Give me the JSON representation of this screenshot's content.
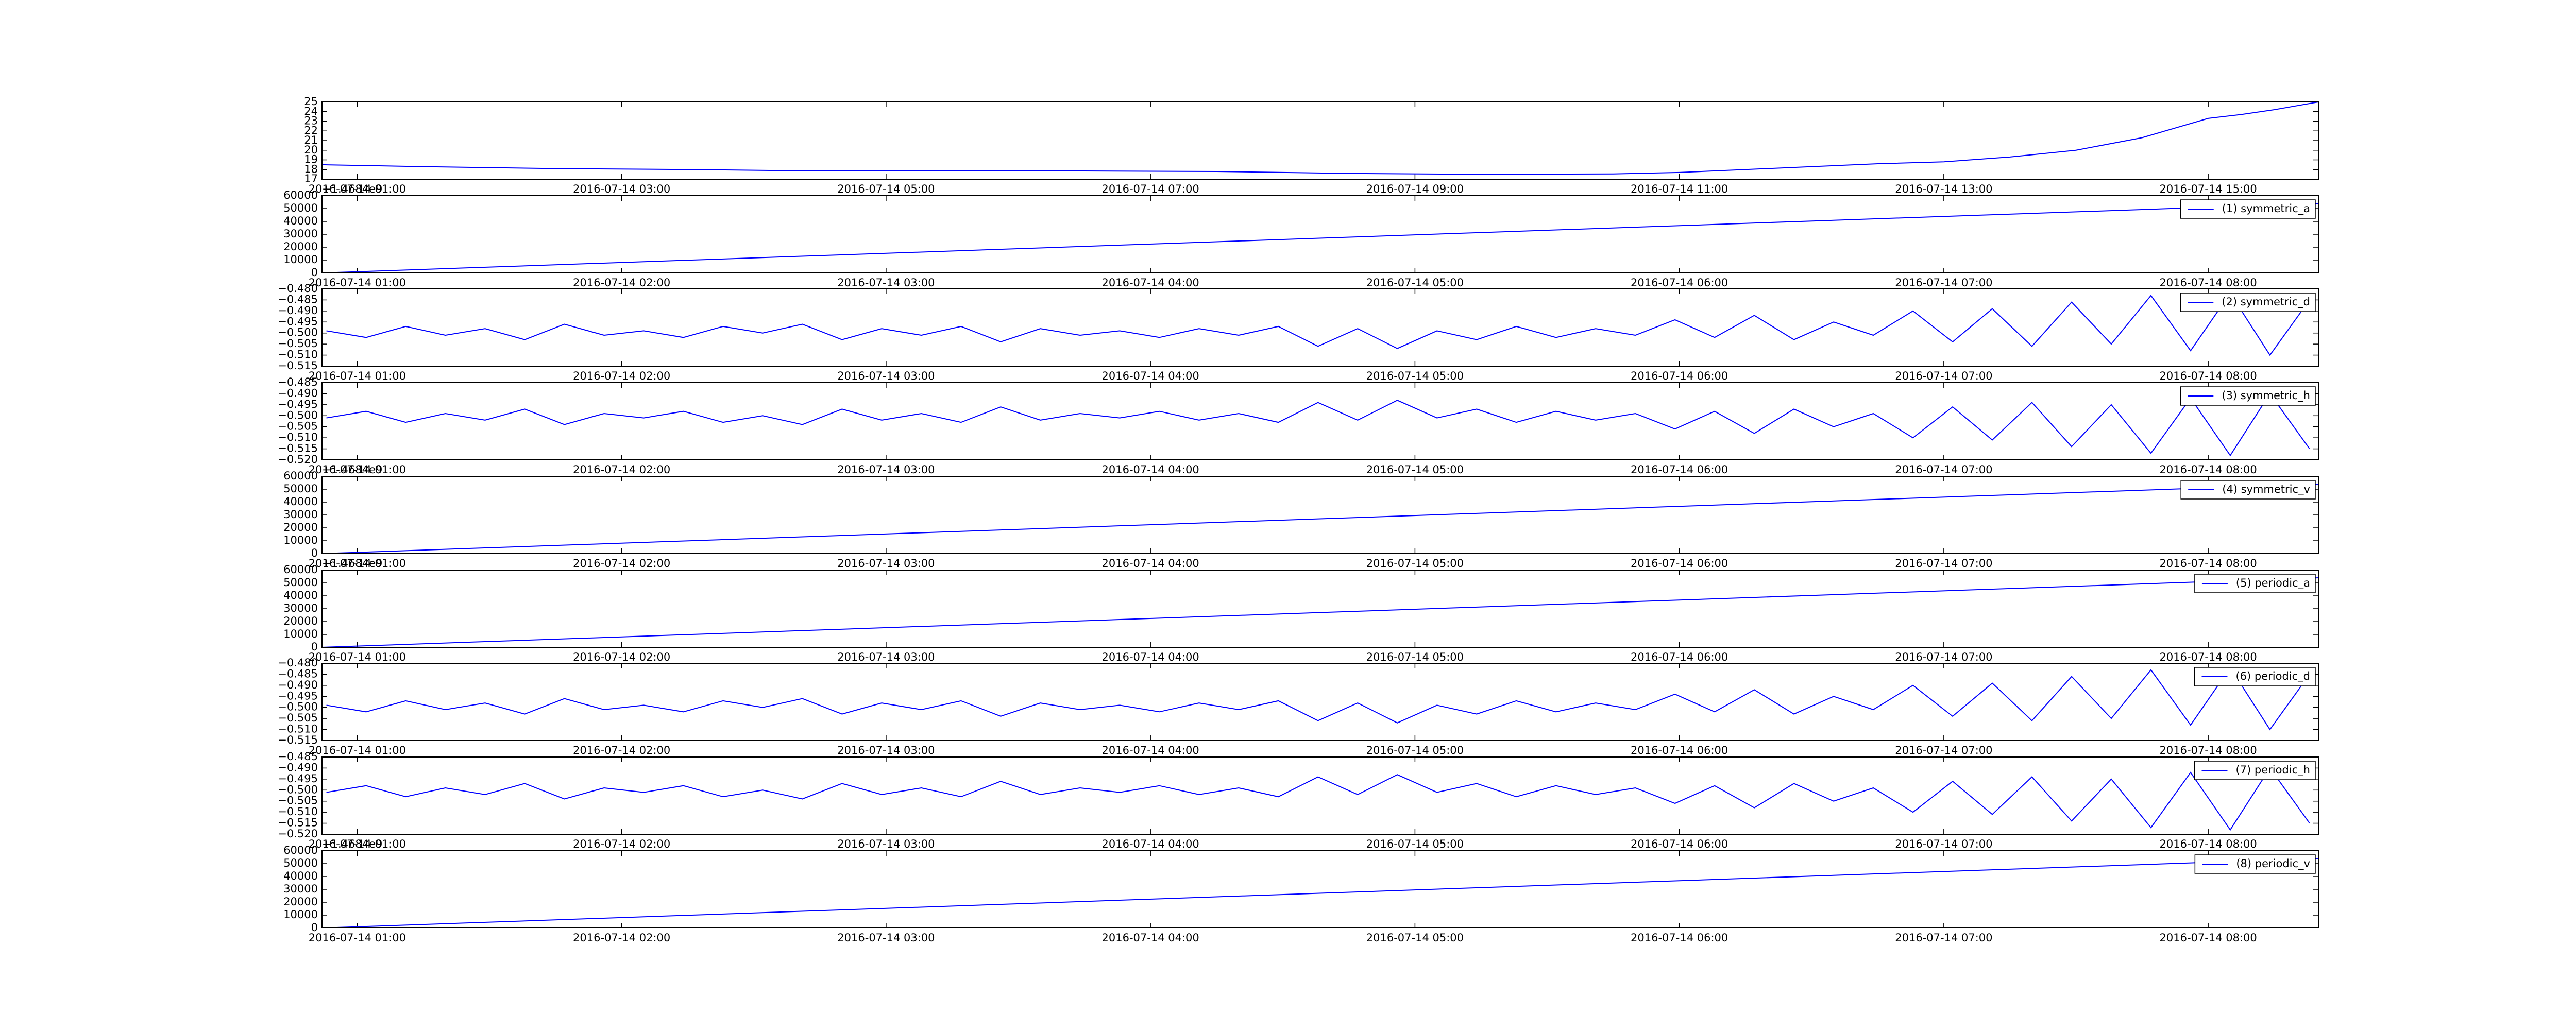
{
  "chart_data": [
    {
      "type": "line",
      "x": [
        "2016-07-14 00:44",
        "2016-07-14 01:30",
        "2016-07-14 02:30",
        "2016-07-14 03:30",
        "2016-07-14 04:30",
        "2016-07-14 05:30",
        "2016-07-14 06:30",
        "2016-07-14 07:30",
        "2016-07-14 08:30",
        "2016-07-14 09:30",
        "2016-07-14 10:30",
        "2016-07-14 11:00",
        "2016-07-14 11:30",
        "2016-07-14 12:00",
        "2016-07-14 12:30",
        "2016-07-14 13:00",
        "2016-07-14 13:30",
        "2016-07-14 14:00",
        "2016-07-14 14:30",
        "2016-07-14 15:00",
        "2016-07-14 15:15",
        "2016-07-14 15:30",
        "2016-07-14 15:50"
      ],
      "series": [
        {
          "color": "#0000ff",
          "values": [
            18.5,
            18.3,
            18.1,
            18.0,
            17.85,
            17.9,
            17.85,
            17.8,
            17.6,
            17.5,
            17.55,
            17.7,
            18.0,
            18.3,
            18.6,
            18.8,
            19.3,
            20.0,
            21.3,
            23.3,
            23.7,
            24.2,
            25.0
          ]
        }
      ],
      "xlim": [
        "2016-07-14 00:44",
        "2016-07-14 15:50"
      ],
      "xticks": [
        "2016-07-14 01:00",
        "2016-07-14 03:00",
        "2016-07-14 05:00",
        "2016-07-14 07:00",
        "2016-07-14 09:00",
        "2016-07-14 11:00",
        "2016-07-14 13:00",
        "2016-07-14 15:00"
      ],
      "ylim": [
        17,
        25
      ],
      "yticks": [
        17,
        18,
        19,
        20,
        21,
        22,
        23,
        24,
        25
      ]
    },
    {
      "type": "line",
      "offset_text": "+1.4684e9",
      "x": [
        "2016-07-14 00:52",
        "2016-07-14 08:25"
      ],
      "series": [
        {
          "name": "(1) symmetric_a",
          "color": "#0000ff",
          "values": [
            0,
            54000
          ]
        }
      ],
      "xlim": [
        "2016-07-14 00:52",
        "2016-07-14 08:25"
      ],
      "xticks": [
        "2016-07-14 01:00",
        "2016-07-14 02:00",
        "2016-07-14 03:00",
        "2016-07-14 04:00",
        "2016-07-14 05:00",
        "2016-07-14 06:00",
        "2016-07-14 07:00",
        "2016-07-14 08:00"
      ],
      "ylim": [
        0,
        60000
      ],
      "yticks": [
        0,
        10000,
        20000,
        30000,
        40000,
        50000,
        60000
      ],
      "legend": "upper right"
    },
    {
      "type": "line",
      "x": [
        "2016-07-14 00:53",
        "2016-07-14 01:02",
        "2016-07-14 01:11",
        "2016-07-14 01:20",
        "2016-07-14 01:29",
        "2016-07-14 01:38",
        "2016-07-14 01:47",
        "2016-07-14 01:56",
        "2016-07-14 02:05",
        "2016-07-14 02:14",
        "2016-07-14 02:23",
        "2016-07-14 02:32",
        "2016-07-14 02:41",
        "2016-07-14 02:50",
        "2016-07-14 02:59",
        "2016-07-14 03:08",
        "2016-07-14 03:17",
        "2016-07-14 03:26",
        "2016-07-14 03:35",
        "2016-07-14 03:44",
        "2016-07-14 03:53",
        "2016-07-14 04:02",
        "2016-07-14 04:11",
        "2016-07-14 04:20",
        "2016-07-14 04:29",
        "2016-07-14 04:38",
        "2016-07-14 04:47",
        "2016-07-14 04:56",
        "2016-07-14 05:05",
        "2016-07-14 05:14",
        "2016-07-14 05:23",
        "2016-07-14 05:32",
        "2016-07-14 05:41",
        "2016-07-14 05:50",
        "2016-07-14 05:59",
        "2016-07-14 06:08",
        "2016-07-14 06:17",
        "2016-07-14 06:26",
        "2016-07-14 06:35",
        "2016-07-14 06:44",
        "2016-07-14 06:53",
        "2016-07-14 07:02",
        "2016-07-14 07:11",
        "2016-07-14 07:20",
        "2016-07-14 07:29",
        "2016-07-14 07:38",
        "2016-07-14 07:47",
        "2016-07-14 07:56",
        "2016-07-14 08:05",
        "2016-07-14 08:14",
        "2016-07-14 08:23"
      ],
      "series": [
        {
          "name": "(2) symmetric_d",
          "color": "#0000ff",
          "values": [
            -0.499,
            -0.502,
            -0.497,
            -0.501,
            -0.498,
            -0.503,
            -0.496,
            -0.501,
            -0.499,
            -0.502,
            -0.497,
            -0.5,
            -0.496,
            -0.503,
            -0.498,
            -0.501,
            -0.497,
            -0.504,
            -0.498,
            -0.501,
            -0.499,
            -0.502,
            -0.498,
            -0.501,
            -0.497,
            -0.506,
            -0.498,
            -0.507,
            -0.499,
            -0.503,
            -0.497,
            -0.502,
            -0.498,
            -0.501,
            -0.494,
            -0.502,
            -0.492,
            -0.503,
            -0.495,
            -0.501,
            -0.49,
            -0.504,
            -0.489,
            -0.506,
            -0.486,
            -0.505,
            -0.483,
            -0.508,
            -0.482,
            -0.51,
            -0.485
          ]
        }
      ],
      "xlim": [
        "2016-07-14 00:52",
        "2016-07-14 08:25"
      ],
      "xticks": [
        "2016-07-14 01:00",
        "2016-07-14 02:00",
        "2016-07-14 03:00",
        "2016-07-14 04:00",
        "2016-07-14 05:00",
        "2016-07-14 06:00",
        "2016-07-14 07:00",
        "2016-07-14 08:00"
      ],
      "ylim": [
        -0.515,
        -0.48
      ],
      "yticks": [
        {
          "value": -0.515,
          "label": "−0.515"
        },
        {
          "value": -0.51,
          "label": "−0.510"
        },
        {
          "value": -0.505,
          "label": "−0.505"
        },
        {
          "value": -0.5,
          "label": "−0.500"
        },
        {
          "value": -0.495,
          "label": "−0.495"
        },
        {
          "value": -0.49,
          "label": "−0.490"
        },
        {
          "value": -0.485,
          "label": "−0.485"
        },
        {
          "value": -0.48,
          "label": "−0.480"
        }
      ],
      "legend": "upper right"
    },
    {
      "type": "line",
      "x": [
        "2016-07-14 00:53",
        "2016-07-14 01:02",
        "2016-07-14 01:11",
        "2016-07-14 01:20",
        "2016-07-14 01:29",
        "2016-07-14 01:38",
        "2016-07-14 01:47",
        "2016-07-14 01:56",
        "2016-07-14 02:05",
        "2016-07-14 02:14",
        "2016-07-14 02:23",
        "2016-07-14 02:32",
        "2016-07-14 02:41",
        "2016-07-14 02:50",
        "2016-07-14 02:59",
        "2016-07-14 03:08",
        "2016-07-14 03:17",
        "2016-07-14 03:26",
        "2016-07-14 03:35",
        "2016-07-14 03:44",
        "2016-07-14 03:53",
        "2016-07-14 04:02",
        "2016-07-14 04:11",
        "2016-07-14 04:20",
        "2016-07-14 04:29",
        "2016-07-14 04:38",
        "2016-07-14 04:47",
        "2016-07-14 04:56",
        "2016-07-14 05:05",
        "2016-07-14 05:14",
        "2016-07-14 05:23",
        "2016-07-14 05:32",
        "2016-07-14 05:41",
        "2016-07-14 05:50",
        "2016-07-14 05:59",
        "2016-07-14 06:08",
        "2016-07-14 06:17",
        "2016-07-14 06:26",
        "2016-07-14 06:35",
        "2016-07-14 06:44",
        "2016-07-14 06:53",
        "2016-07-14 07:02",
        "2016-07-14 07:11",
        "2016-07-14 07:20",
        "2016-07-14 07:29",
        "2016-07-14 07:38",
        "2016-07-14 07:47",
        "2016-07-14 07:56",
        "2016-07-14 08:05",
        "2016-07-14 08:14",
        "2016-07-14 08:23"
      ],
      "series": [
        {
          "name": "(3) symmetric_h",
          "color": "#0000ff",
          "values": [
            -0.501,
            -0.498,
            -0.503,
            -0.499,
            -0.502,
            -0.497,
            -0.504,
            -0.499,
            -0.501,
            -0.498,
            -0.503,
            -0.5,
            -0.504,
            -0.497,
            -0.502,
            -0.499,
            -0.503,
            -0.496,
            -0.502,
            -0.499,
            -0.501,
            -0.498,
            -0.502,
            -0.499,
            -0.503,
            -0.494,
            -0.502,
            -0.493,
            -0.501,
            -0.497,
            -0.503,
            -0.498,
            -0.502,
            -0.499,
            -0.506,
            -0.498,
            -0.508,
            -0.497,
            -0.505,
            -0.499,
            -0.51,
            -0.496,
            -0.511,
            -0.494,
            -0.514,
            -0.495,
            -0.517,
            -0.492,
            -0.518,
            -0.49,
            -0.515
          ]
        }
      ],
      "xlim": [
        "2016-07-14 00:52",
        "2016-07-14 08:25"
      ],
      "xticks": [
        "2016-07-14 01:00",
        "2016-07-14 02:00",
        "2016-07-14 03:00",
        "2016-07-14 04:00",
        "2016-07-14 05:00",
        "2016-07-14 06:00",
        "2016-07-14 07:00",
        "2016-07-14 08:00"
      ],
      "ylim": [
        -0.52,
        -0.485
      ],
      "yticks": [
        {
          "value": -0.52,
          "label": "−0.520"
        },
        {
          "value": -0.515,
          "label": "−0.515"
        },
        {
          "value": -0.51,
          "label": "−0.510"
        },
        {
          "value": -0.505,
          "label": "−0.505"
        },
        {
          "value": -0.5,
          "label": "−0.500"
        },
        {
          "value": -0.495,
          "label": "−0.495"
        },
        {
          "value": -0.49,
          "label": "−0.490"
        },
        {
          "value": -0.485,
          "label": "−0.485"
        }
      ],
      "legend": "upper right"
    },
    {
      "type": "line",
      "offset_text": "+1.4684e9",
      "x": [
        "2016-07-14 00:52",
        "2016-07-14 08:25"
      ],
      "series": [
        {
          "name": "(4) symmetric_v",
          "color": "#0000ff",
          "values": [
            0,
            54000
          ]
        }
      ],
      "xlim": [
        "2016-07-14 00:52",
        "2016-07-14 08:25"
      ],
      "xticks": [
        "2016-07-14 01:00",
        "2016-07-14 02:00",
        "2016-07-14 03:00",
        "2016-07-14 04:00",
        "2016-07-14 05:00",
        "2016-07-14 06:00",
        "2016-07-14 07:00",
        "2016-07-14 08:00"
      ],
      "ylim": [
        0,
        60000
      ],
      "yticks": [
        0,
        10000,
        20000,
        30000,
        40000,
        50000,
        60000
      ],
      "legend": "upper right"
    },
    {
      "type": "line",
      "offset_text": "+1.4684e9",
      "x": [
        "2016-07-14 00:52",
        "2016-07-14 08:25"
      ],
      "series": [
        {
          "name": "(5) periodic_a",
          "color": "#0000ff",
          "values": [
            0,
            54000
          ]
        }
      ],
      "xlim": [
        "2016-07-14 00:52",
        "2016-07-14 08:25"
      ],
      "xticks": [
        "2016-07-14 01:00",
        "2016-07-14 02:00",
        "2016-07-14 03:00",
        "2016-07-14 04:00",
        "2016-07-14 05:00",
        "2016-07-14 06:00",
        "2016-07-14 07:00",
        "2016-07-14 08:00"
      ],
      "ylim": [
        0,
        60000
      ],
      "yticks": [
        0,
        10000,
        20000,
        30000,
        40000,
        50000,
        60000
      ],
      "legend": "upper right"
    },
    {
      "type": "line",
      "x": [
        "2016-07-14 00:53",
        "2016-07-14 01:02",
        "2016-07-14 01:11",
        "2016-07-14 01:20",
        "2016-07-14 01:29",
        "2016-07-14 01:38",
        "2016-07-14 01:47",
        "2016-07-14 01:56",
        "2016-07-14 02:05",
        "2016-07-14 02:14",
        "2016-07-14 02:23",
        "2016-07-14 02:32",
        "2016-07-14 02:41",
        "2016-07-14 02:50",
        "2016-07-14 02:59",
        "2016-07-14 03:08",
        "2016-07-14 03:17",
        "2016-07-14 03:26",
        "2016-07-14 03:35",
        "2016-07-14 03:44",
        "2016-07-14 03:53",
        "2016-07-14 04:02",
        "2016-07-14 04:11",
        "2016-07-14 04:20",
        "2016-07-14 04:29",
        "2016-07-14 04:38",
        "2016-07-14 04:47",
        "2016-07-14 04:56",
        "2016-07-14 05:05",
        "2016-07-14 05:14",
        "2016-07-14 05:23",
        "2016-07-14 05:32",
        "2016-07-14 05:41",
        "2016-07-14 05:50",
        "2016-07-14 05:59",
        "2016-07-14 06:08",
        "2016-07-14 06:17",
        "2016-07-14 06:26",
        "2016-07-14 06:35",
        "2016-07-14 06:44",
        "2016-07-14 06:53",
        "2016-07-14 07:02",
        "2016-07-14 07:11",
        "2016-07-14 07:20",
        "2016-07-14 07:29",
        "2016-07-14 07:38",
        "2016-07-14 07:47",
        "2016-07-14 07:56",
        "2016-07-14 08:05",
        "2016-07-14 08:14",
        "2016-07-14 08:23"
      ],
      "series": [
        {
          "name": "(6) periodic_d",
          "color": "#0000ff",
          "values": [
            -0.499,
            -0.502,
            -0.497,
            -0.501,
            -0.498,
            -0.503,
            -0.496,
            -0.501,
            -0.499,
            -0.502,
            -0.497,
            -0.5,
            -0.496,
            -0.503,
            -0.498,
            -0.501,
            -0.497,
            -0.504,
            -0.498,
            -0.501,
            -0.499,
            -0.502,
            -0.498,
            -0.501,
            -0.497,
            -0.506,
            -0.498,
            -0.507,
            -0.499,
            -0.503,
            -0.497,
            -0.502,
            -0.498,
            -0.501,
            -0.494,
            -0.502,
            -0.492,
            -0.503,
            -0.495,
            -0.501,
            -0.49,
            -0.504,
            -0.489,
            -0.506,
            -0.486,
            -0.505,
            -0.483,
            -0.508,
            -0.482,
            -0.51,
            -0.485
          ]
        }
      ],
      "xlim": [
        "2016-07-14 00:52",
        "2016-07-14 08:25"
      ],
      "xticks": [
        "2016-07-14 01:00",
        "2016-07-14 02:00",
        "2016-07-14 03:00",
        "2016-07-14 04:00",
        "2016-07-14 05:00",
        "2016-07-14 06:00",
        "2016-07-14 07:00",
        "2016-07-14 08:00"
      ],
      "ylim": [
        -0.515,
        -0.48
      ],
      "yticks": [
        {
          "value": -0.515,
          "label": "−0.515"
        },
        {
          "value": -0.51,
          "label": "−0.510"
        },
        {
          "value": -0.505,
          "label": "−0.505"
        },
        {
          "value": -0.5,
          "label": "−0.500"
        },
        {
          "value": -0.495,
          "label": "−0.495"
        },
        {
          "value": -0.49,
          "label": "−0.490"
        },
        {
          "value": -0.485,
          "label": "−0.485"
        },
        {
          "value": -0.48,
          "label": "−0.480"
        }
      ],
      "legend": "upper right"
    },
    {
      "type": "line",
      "x": [
        "2016-07-14 00:53",
        "2016-07-14 01:02",
        "2016-07-14 01:11",
        "2016-07-14 01:20",
        "2016-07-14 01:29",
        "2016-07-14 01:38",
        "2016-07-14 01:47",
        "2016-07-14 01:56",
        "2016-07-14 02:05",
        "2016-07-14 02:14",
        "2016-07-14 02:23",
        "2016-07-14 02:32",
        "2016-07-14 02:41",
        "2016-07-14 02:50",
        "2016-07-14 02:59",
        "2016-07-14 03:08",
        "2016-07-14 03:17",
        "2016-07-14 03:26",
        "2016-07-14 03:35",
        "2016-07-14 03:44",
        "2016-07-14 03:53",
        "2016-07-14 04:02",
        "2016-07-14 04:11",
        "2016-07-14 04:20",
        "2016-07-14 04:29",
        "2016-07-14 04:38",
        "2016-07-14 04:47",
        "2016-07-14 04:56",
        "2016-07-14 05:05",
        "2016-07-14 05:14",
        "2016-07-14 05:23",
        "2016-07-14 05:32",
        "2016-07-14 05:41",
        "2016-07-14 05:50",
        "2016-07-14 05:59",
        "2016-07-14 06:08",
        "2016-07-14 06:17",
        "2016-07-14 06:26",
        "2016-07-14 06:35",
        "2016-07-14 06:44",
        "2016-07-14 06:53",
        "2016-07-14 07:02",
        "2016-07-14 07:11",
        "2016-07-14 07:20",
        "2016-07-14 07:29",
        "2016-07-14 07:38",
        "2016-07-14 07:47",
        "2016-07-14 07:56",
        "2016-07-14 08:05",
        "2016-07-14 08:14",
        "2016-07-14 08:23"
      ],
      "series": [
        {
          "name": "(7) periodic_h",
          "color": "#0000ff",
          "values": [
            -0.501,
            -0.498,
            -0.503,
            -0.499,
            -0.502,
            -0.497,
            -0.504,
            -0.499,
            -0.501,
            -0.498,
            -0.503,
            -0.5,
            -0.504,
            -0.497,
            -0.502,
            -0.499,
            -0.503,
            -0.496,
            -0.502,
            -0.499,
            -0.501,
            -0.498,
            -0.502,
            -0.499,
            -0.503,
            -0.494,
            -0.502,
            -0.493,
            -0.501,
            -0.497,
            -0.503,
            -0.498,
            -0.502,
            -0.499,
            -0.506,
            -0.498,
            -0.508,
            -0.497,
            -0.505,
            -0.499,
            -0.51,
            -0.496,
            -0.511,
            -0.494,
            -0.514,
            -0.495,
            -0.517,
            -0.492,
            -0.518,
            -0.49,
            -0.515
          ]
        }
      ],
      "xlim": [
        "2016-07-14 00:52",
        "2016-07-14 08:25"
      ],
      "xticks": [
        "2016-07-14 01:00",
        "2016-07-14 02:00",
        "2016-07-14 03:00",
        "2016-07-14 04:00",
        "2016-07-14 05:00",
        "2016-07-14 06:00",
        "2016-07-14 07:00",
        "2016-07-14 08:00"
      ],
      "ylim": [
        -0.52,
        -0.485
      ],
      "yticks": [
        {
          "value": -0.52,
          "label": "−0.520"
        },
        {
          "value": -0.515,
          "label": "−0.515"
        },
        {
          "value": -0.51,
          "label": "−0.510"
        },
        {
          "value": -0.505,
          "label": "−0.505"
        },
        {
          "value": -0.5,
          "label": "−0.500"
        },
        {
          "value": -0.495,
          "label": "−0.495"
        },
        {
          "value": -0.49,
          "label": "−0.490"
        },
        {
          "value": -0.485,
          "label": "−0.485"
        }
      ],
      "legend": "upper right"
    },
    {
      "type": "line",
      "offset_text": "+1.4684e9",
      "x": [
        "2016-07-14 00:52",
        "2016-07-14 08:25"
      ],
      "series": [
        {
          "name": "(8) periodic_v",
          "color": "#0000ff",
          "values": [
            0,
            54000
          ]
        }
      ],
      "xlim": [
        "2016-07-14 00:52",
        "2016-07-14 08:25"
      ],
      "xticks": [
        "2016-07-14 01:00",
        "2016-07-14 02:00",
        "2016-07-14 03:00",
        "2016-07-14 04:00",
        "2016-07-14 05:00",
        "2016-07-14 06:00",
        "2016-07-14 07:00",
        "2016-07-14 08:00"
      ],
      "ylim": [
        0,
        60000
      ],
      "yticks": [
        0,
        10000,
        20000,
        30000,
        40000,
        50000,
        60000
      ],
      "legend": "upper right"
    }
  ]
}
